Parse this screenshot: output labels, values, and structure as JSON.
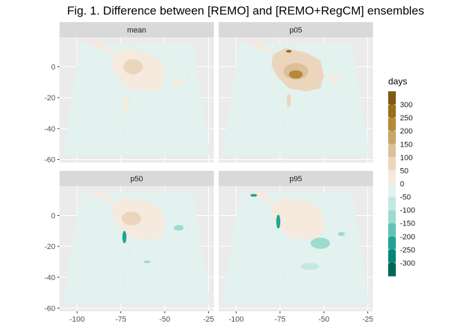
{
  "chart_data": {
    "type": "heatmap",
    "title": "Fig. 1. Difference between [REMO] and [REMO+RegCM] ensembles",
    "xlabel": "",
    "ylabel": "",
    "x_ticks": [
      -100,
      -75,
      -50,
      -25
    ],
    "y_ticks": [
      0,
      -20,
      -40,
      -60
    ],
    "xlim": [
      -110,
      -22
    ],
    "ylim": [
      -62,
      19
    ],
    "grid": true,
    "panels": [
      {
        "name": "mean",
        "dominant_range": [
          0,
          50
        ]
      },
      {
        "name": "p05",
        "dominant_range": [
          50,
          150
        ]
      },
      {
        "name": "p50",
        "dominant_range": [
          0,
          100
        ]
      },
      {
        "name": "p95",
        "dominant_range": [
          -100,
          50
        ]
      }
    ],
    "legend": {
      "title": "days",
      "position": "right",
      "breaks": [
        300,
        250,
        200,
        150,
        100,
        50,
        0,
        -50,
        -100,
        -150,
        -200,
        -250,
        -300
      ],
      "colors": [
        "#7f5a12",
        "#9a6f1c",
        "#b5893a",
        "#c9a467",
        "#dbc19a",
        "#ebd6bd",
        "#f5eadd",
        "#e3f2ee",
        "#c2e8e0",
        "#9bdbd0",
        "#62c4b5",
        "#21a593",
        "#08857a",
        "#006658"
      ]
    }
  },
  "colors": {
    "panel_bg": "#ebebeb",
    "strip_bg": "#d9d9d9",
    "grid": "#ffffff",
    "domain_fill": "#e3f2ee",
    "land_mean": "#f5eadd",
    "land_warm": "#dbc19a",
    "land_hot": "#9a6f1c",
    "cool": "#9bdbd0",
    "cool_dark": "#21a593"
  }
}
